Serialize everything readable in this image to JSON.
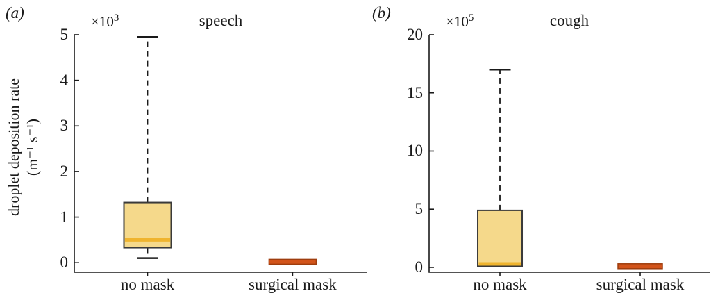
{
  "colors": {
    "axis": "#1a1a1a",
    "whisker": "#1a1a1a",
    "box_fill": "#F5D98B",
    "box_edge": "#3a3a3a",
    "median": "#EFB42E",
    "collapsed_fill": "#D2541B",
    "collapsed_edge": "#9E3D0E"
  },
  "ylabel": {
    "line1": "droplet deposition rate",
    "line2": "(m⁻¹ s⁻¹)"
  },
  "chart_data": [
    {
      "panel": "(a)",
      "type": "box",
      "title": "speech",
      "unit_multiplier": {
        "base": "×10",
        "exp": "3"
      },
      "ylabel": "droplet deposition rate (m^-1 s^-1), values ×10^3",
      "categories": [
        "no mask",
        "surgical mask"
      ],
      "yticks": [
        0,
        1,
        2,
        3,
        4,
        5
      ],
      "ylim": [
        -0.21,
        5
      ],
      "grid": false,
      "boxes": [
        {
          "category": "no mask",
          "whisker_low": 0.1,
          "q1": 0.33,
          "median": 0.5,
          "q3": 1.32,
          "whisker_high": 4.95,
          "style": "normal"
        },
        {
          "category": "surgical mask",
          "whisker_low": null,
          "q1": 0.0,
          "median": 0.02,
          "q3": 0.05,
          "whisker_high": null,
          "style": "collapsed"
        }
      ]
    },
    {
      "panel": "(b)",
      "type": "box",
      "title": "cough",
      "unit_multiplier": {
        "base": "×10",
        "exp": "5"
      },
      "ylabel": "droplet deposition rate (m^-1 s^-1), values ×10^5",
      "categories": [
        "no mask",
        "surgical mask"
      ],
      "yticks": [
        0,
        5,
        10,
        15,
        20
      ],
      "ylim": [
        -0.42,
        20
      ],
      "grid": false,
      "boxes": [
        {
          "category": "no mask",
          "whisker_low": null,
          "q1": 0.1,
          "median": 0.3,
          "q3": 4.9,
          "whisker_high": 17.0,
          "style": "normal"
        },
        {
          "category": "surgical mask",
          "whisker_low": null,
          "q1": 0.0,
          "median": 0.1,
          "q3": 0.3,
          "whisker_high": null,
          "style": "collapsed"
        }
      ]
    }
  ]
}
